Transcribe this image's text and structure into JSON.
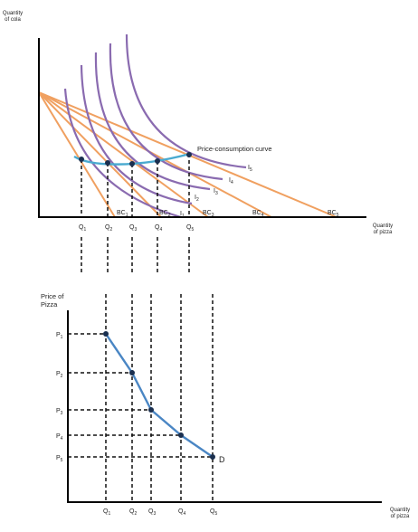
{
  "top": {
    "y_axis_label": [
      "Quantity",
      "of cola"
    ],
    "x_axis_label": [
      "Quantity",
      "of pizza"
    ],
    "curve_label": "Price-consumption curve",
    "indifference_labels": [
      {
        "base": "I",
        "sub": "1"
      },
      {
        "base": "I",
        "sub": "2"
      },
      {
        "base": "I",
        "sub": "3"
      },
      {
        "base": "I",
        "sub": "4"
      },
      {
        "base": "I",
        "sub": "5"
      }
    ],
    "budget_labels": [
      {
        "base": "BC",
        "sub": "1"
      },
      {
        "base": "BC",
        "sub": "2"
      },
      {
        "base": "BC",
        "sub": "3"
      },
      {
        "base": "BC",
        "sub": "4"
      },
      {
        "base": "BC",
        "sub": "5"
      }
    ],
    "q_labels": [
      {
        "base": "Q",
        "sub": "1"
      },
      {
        "base": "Q",
        "sub": "2"
      },
      {
        "base": "Q",
        "sub": "3"
      },
      {
        "base": "Q",
        "sub": "4"
      },
      {
        "base": "Q",
        "sub": "5"
      }
    ]
  },
  "bottom": {
    "y_axis_label": [
      "Price of",
      "Pizza"
    ],
    "x_axis_label": [
      "Quantity",
      "of pizza"
    ],
    "demand_label": "D",
    "p_labels": [
      {
        "base": "P",
        "sub": "1"
      },
      {
        "base": "P",
        "sub": "2"
      },
      {
        "base": "P",
        "sub": "3"
      },
      {
        "base": "P",
        "sub": "4"
      },
      {
        "base": "P",
        "sub": "5"
      }
    ],
    "q_labels": [
      {
        "base": "Q",
        "sub": "1"
      },
      {
        "base": "Q",
        "sub": "2"
      },
      {
        "base": "Q",
        "sub": "3"
      },
      {
        "base": "Q",
        "sub": "4"
      },
      {
        "base": "Q",
        "sub": "5"
      }
    ]
  },
  "colors": {
    "axes": "#000000",
    "budget_constraints": "#f0a060",
    "indifference_curves": "#8a6bb0",
    "price_consumption_curve": "#4aaad0",
    "demand_curve": "#4a86c4",
    "points": "#1a2f4f"
  }
}
